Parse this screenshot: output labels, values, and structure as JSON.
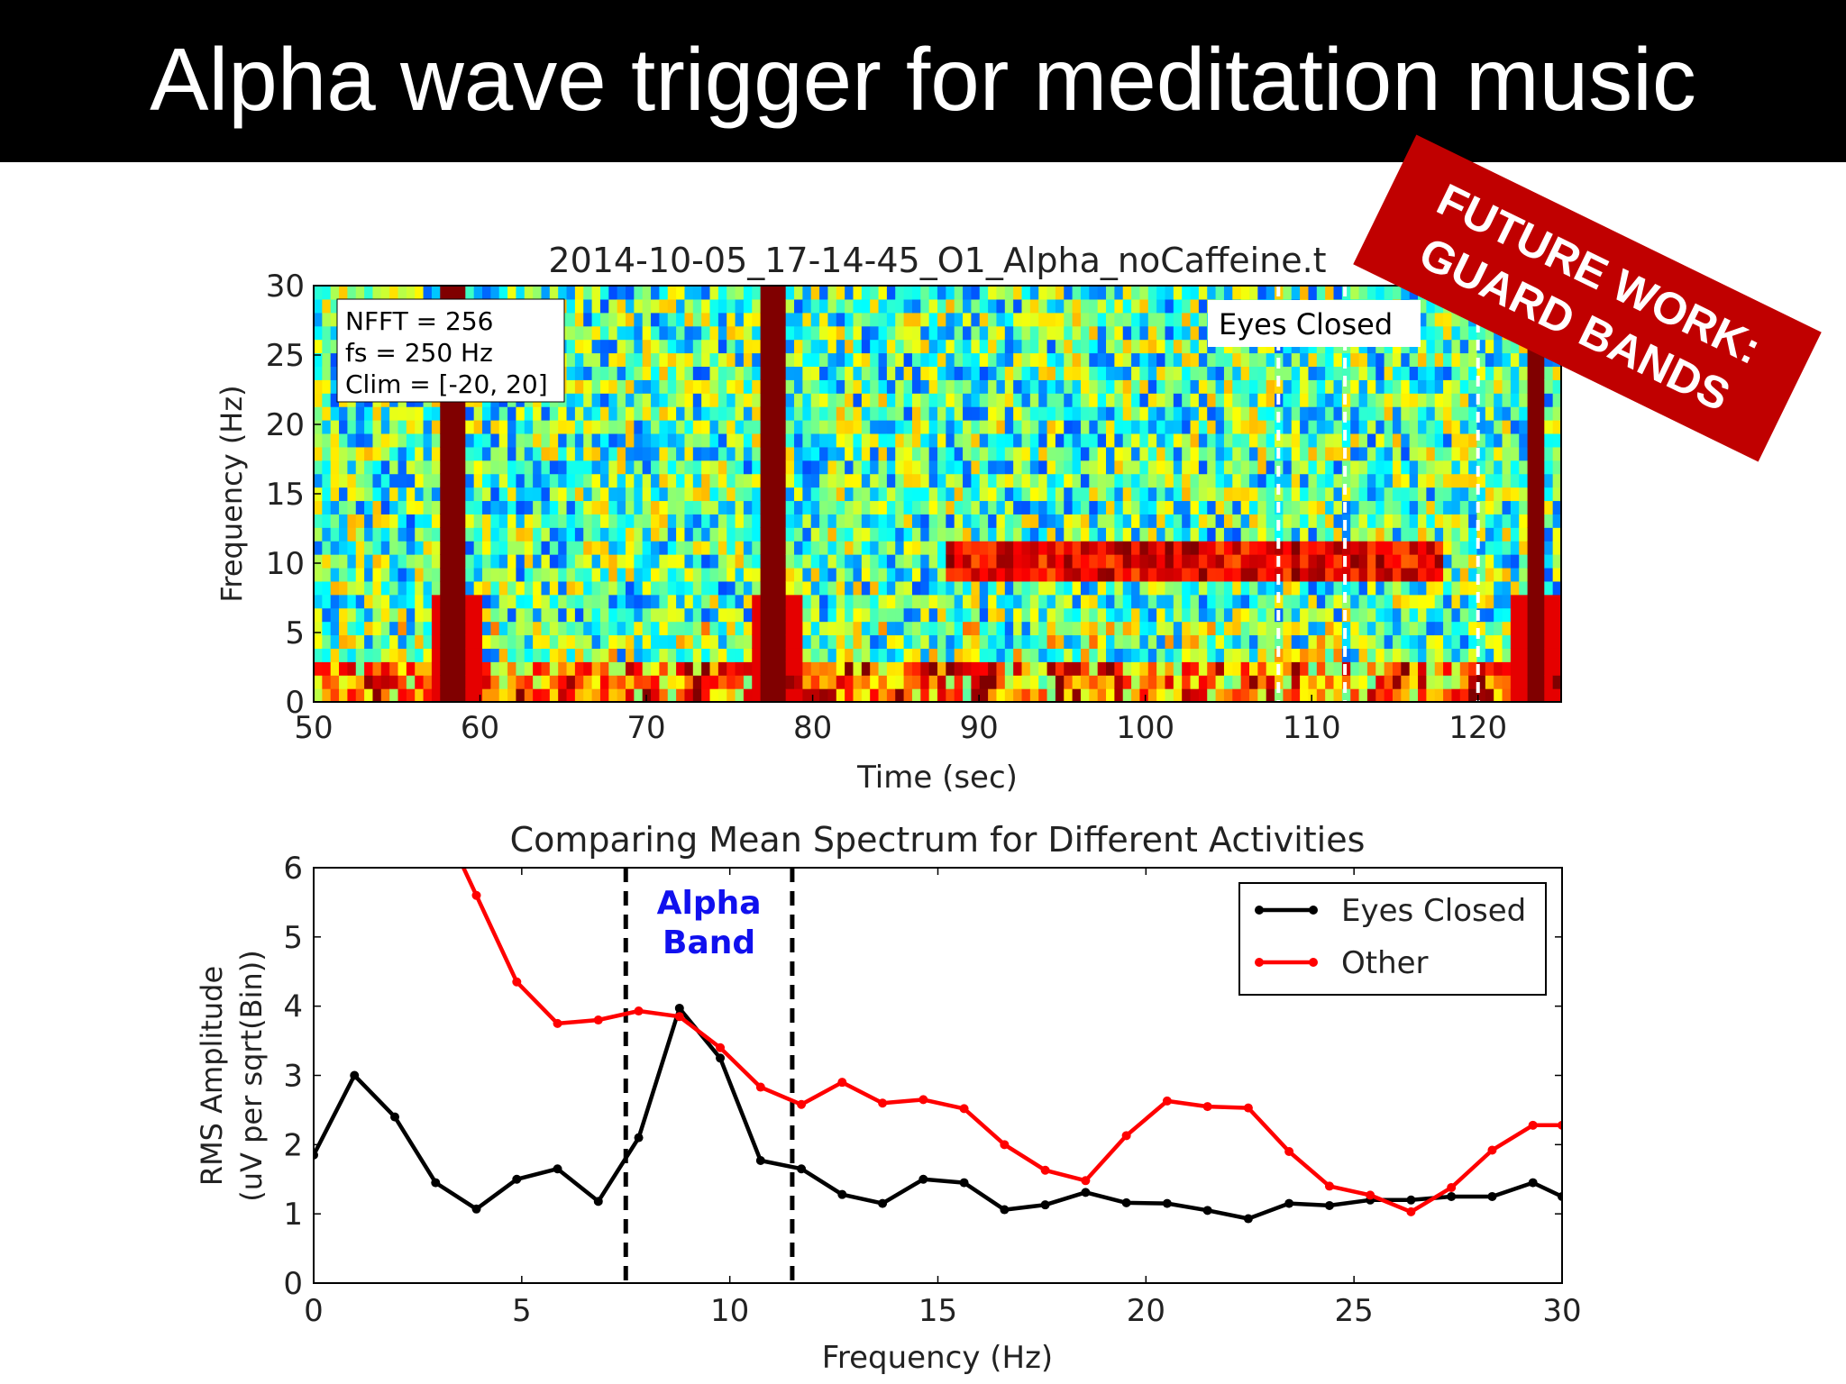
{
  "slide": {
    "title": "Alpha wave trigger for meditation music"
  },
  "stamp": {
    "line1": "FUTURE WORK:",
    "line2": "GUARD BANDS",
    "color": "#c00000"
  },
  "chart_data": [
    {
      "type": "heatmap",
      "title": "2014-10-05_17-14-45_O1_Alpha_noCaffeine.t",
      "xlabel": "Time (sec)",
      "ylabel": "Frequency (Hz)",
      "xlim": [
        50,
        125
      ],
      "ylim": [
        0,
        30
      ],
      "xticks": [
        50,
        60,
        70,
        80,
        90,
        100,
        110,
        120
      ],
      "yticks": [
        0,
        5,
        10,
        15,
        20,
        25,
        30
      ],
      "colormap": "jet",
      "clim": [
        -20,
        20
      ],
      "info_box": [
        "NFFT = 256",
        "fs = 250 Hz",
        "Clim = [-20, 20]"
      ],
      "annotation": "Eyes Closed",
      "high_power_bursts_sec": [
        58.5,
        77.8,
        123.5
      ],
      "alpha_band_row_hz": 10,
      "alpha_band_time_range_sec": [
        88,
        118
      ],
      "dashed_markers_sec": [
        108,
        112,
        120
      ]
    },
    {
      "type": "line",
      "title": "Comparing Mean Spectrum for Different Activities",
      "xlabel": "Frequency (Hz)",
      "ylabel": [
        "RMS Amplitude",
        "(uV per sqrt(Bin))"
      ],
      "xlim": [
        0,
        30
      ],
      "ylim": [
        0,
        6
      ],
      "xticks": [
        0,
        5,
        10,
        15,
        20,
        25,
        30
      ],
      "yticks": [
        0,
        1,
        2,
        3,
        4,
        5,
        6
      ],
      "legend_position": "top-right",
      "band_label": [
        "Alpha",
        "Band"
      ],
      "band_lines_hz": [
        7.5,
        11.5
      ],
      "x": [
        0,
        0.98,
        1.95,
        2.93,
        3.91,
        4.88,
        5.86,
        6.84,
        7.81,
        8.79,
        9.77,
        10.74,
        11.72,
        12.7,
        13.67,
        14.65,
        15.63,
        16.6,
        17.58,
        18.55,
        19.53,
        20.51,
        21.48,
        22.46,
        23.44,
        24.41,
        25.39,
        26.37,
        27.34,
        28.32,
        29.3,
        30
      ],
      "series": [
        {
          "name": "Eyes Closed",
          "color": "#000000",
          "values": [
            1.85,
            3.0,
            2.4,
            1.45,
            1.07,
            1.5,
            1.65,
            1.18,
            2.1,
            3.97,
            3.25,
            1.77,
            1.65,
            1.28,
            1.15,
            1.5,
            1.45,
            1.06,
            1.13,
            1.31,
            1.16,
            1.15,
            1.05,
            0.93,
            1.15,
            1.12,
            1.2,
            1.2,
            1.25,
            1.25,
            1.45,
            1.25
          ]
        },
        {
          "name": "Other",
          "color": "#ff0000",
          "values": [
            null,
            null,
            null,
            null,
            5.6,
            4.35,
            3.75,
            3.8,
            3.93,
            3.85,
            3.4,
            2.83,
            2.58,
            2.9,
            2.6,
            2.65,
            2.52,
            2.0,
            1.63,
            1.48,
            2.13,
            2.63,
            2.55,
            2.53,
            1.9,
            1.4,
            1.27,
            1.03,
            1.38,
            1.92,
            2.28,
            2.28
          ]
        }
      ]
    }
  ]
}
